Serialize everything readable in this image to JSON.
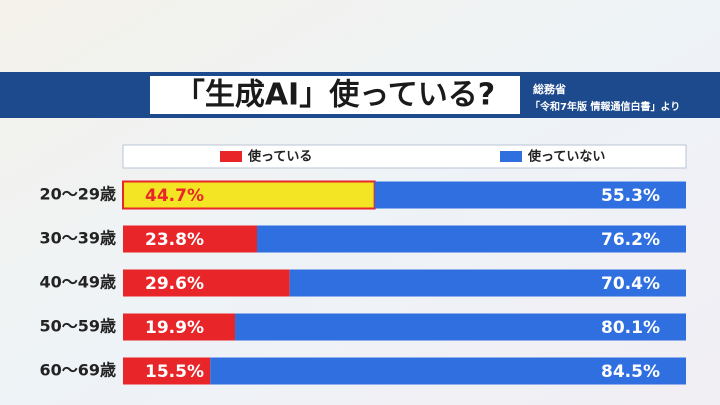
{
  "chart_data": {
    "type": "stacked-hbar",
    "title": "「生成AI」使っている?",
    "source": "総務省",
    "source_note": "「令和7年版 情報通信白書」より",
    "categories": [
      "20～29歳",
      "30～39歳",
      "40～49歳",
      "50～59歳",
      "60～69歳"
    ],
    "series": [
      {
        "name": "使っている",
        "color": "#e8262a",
        "colors": [
          "#f3e424",
          "#e8262a",
          "#e8262a",
          "#e8262a",
          "#e8262a"
        ],
        "values": [
          44.7,
          23.8,
          29.6,
          19.9,
          15.5
        ],
        "value_labels": [
          "44.7%",
          "23.8%",
          "29.6%",
          "19.9%",
          "15.5%"
        ]
      },
      {
        "name": "使っていない",
        "color": "#2f6fe0",
        "values": [
          55.3,
          76.2,
          70.4,
          80.1,
          84.5
        ],
        "value_labels": [
          "55.3%",
          "76.2%",
          "70.4%",
          "80.1%",
          "84.5%"
        ]
      }
    ],
    "xlim": [
      0,
      100
    ]
  }
}
